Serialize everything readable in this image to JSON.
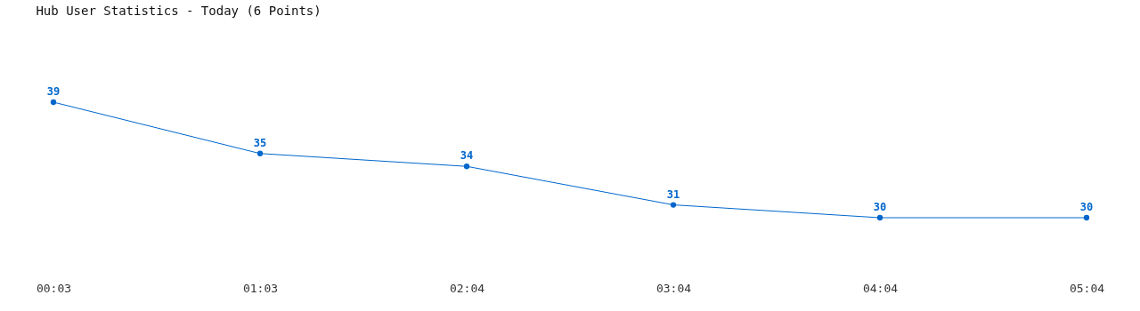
{
  "chart_data": {
    "type": "line",
    "title": "Hub User Statistics - Today (6 Points)",
    "categories": [
      "00:03",
      "01:03",
      "02:04",
      "03:04",
      "04:04",
      "05:04"
    ],
    "series": [
      {
        "color": "#0066cc",
        "values": [
          39,
          35,
          34,
          31,
          30,
          30
        ]
      }
    ],
    "data_labels": true,
    "marker": "circle"
  }
}
